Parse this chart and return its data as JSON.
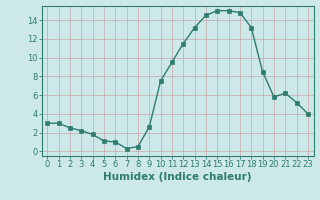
{
  "x": [
    0,
    1,
    2,
    3,
    4,
    5,
    6,
    7,
    8,
    9,
    10,
    11,
    12,
    13,
    14,
    15,
    16,
    17,
    18,
    19,
    20,
    21,
    22,
    23
  ],
  "y": [
    3.0,
    3.0,
    2.5,
    2.2,
    1.8,
    1.1,
    1.0,
    0.3,
    0.5,
    2.6,
    7.5,
    9.5,
    11.5,
    13.2,
    14.5,
    15.0,
    15.0,
    14.8,
    13.2,
    8.5,
    5.8,
    6.2,
    5.2,
    4.0
  ],
  "line_color": "#2e7d6e",
  "marker": "s",
  "marker_size": 2.5,
  "bg_color": "#cce8e8",
  "grid_color": "#b8d4d4",
  "xlabel": "Humidex (Indice chaleur)",
  "ylabel": "",
  "ylim": [
    -0.5,
    15.5
  ],
  "xlim": [
    -0.5,
    23.5
  ],
  "yticks": [
    0,
    2,
    4,
    6,
    8,
    10,
    12,
    14
  ],
  "xticks": [
    0,
    1,
    2,
    3,
    4,
    5,
    6,
    7,
    8,
    9,
    10,
    11,
    12,
    13,
    14,
    15,
    16,
    17,
    18,
    19,
    20,
    21,
    22,
    23
  ],
  "tick_label_fontsize": 6.0,
  "xlabel_fontsize": 7.5,
  "axis_color": "#2e7d6e",
  "tick_color": "#2e7d6e",
  "spine_color": "#2e7d6e"
}
